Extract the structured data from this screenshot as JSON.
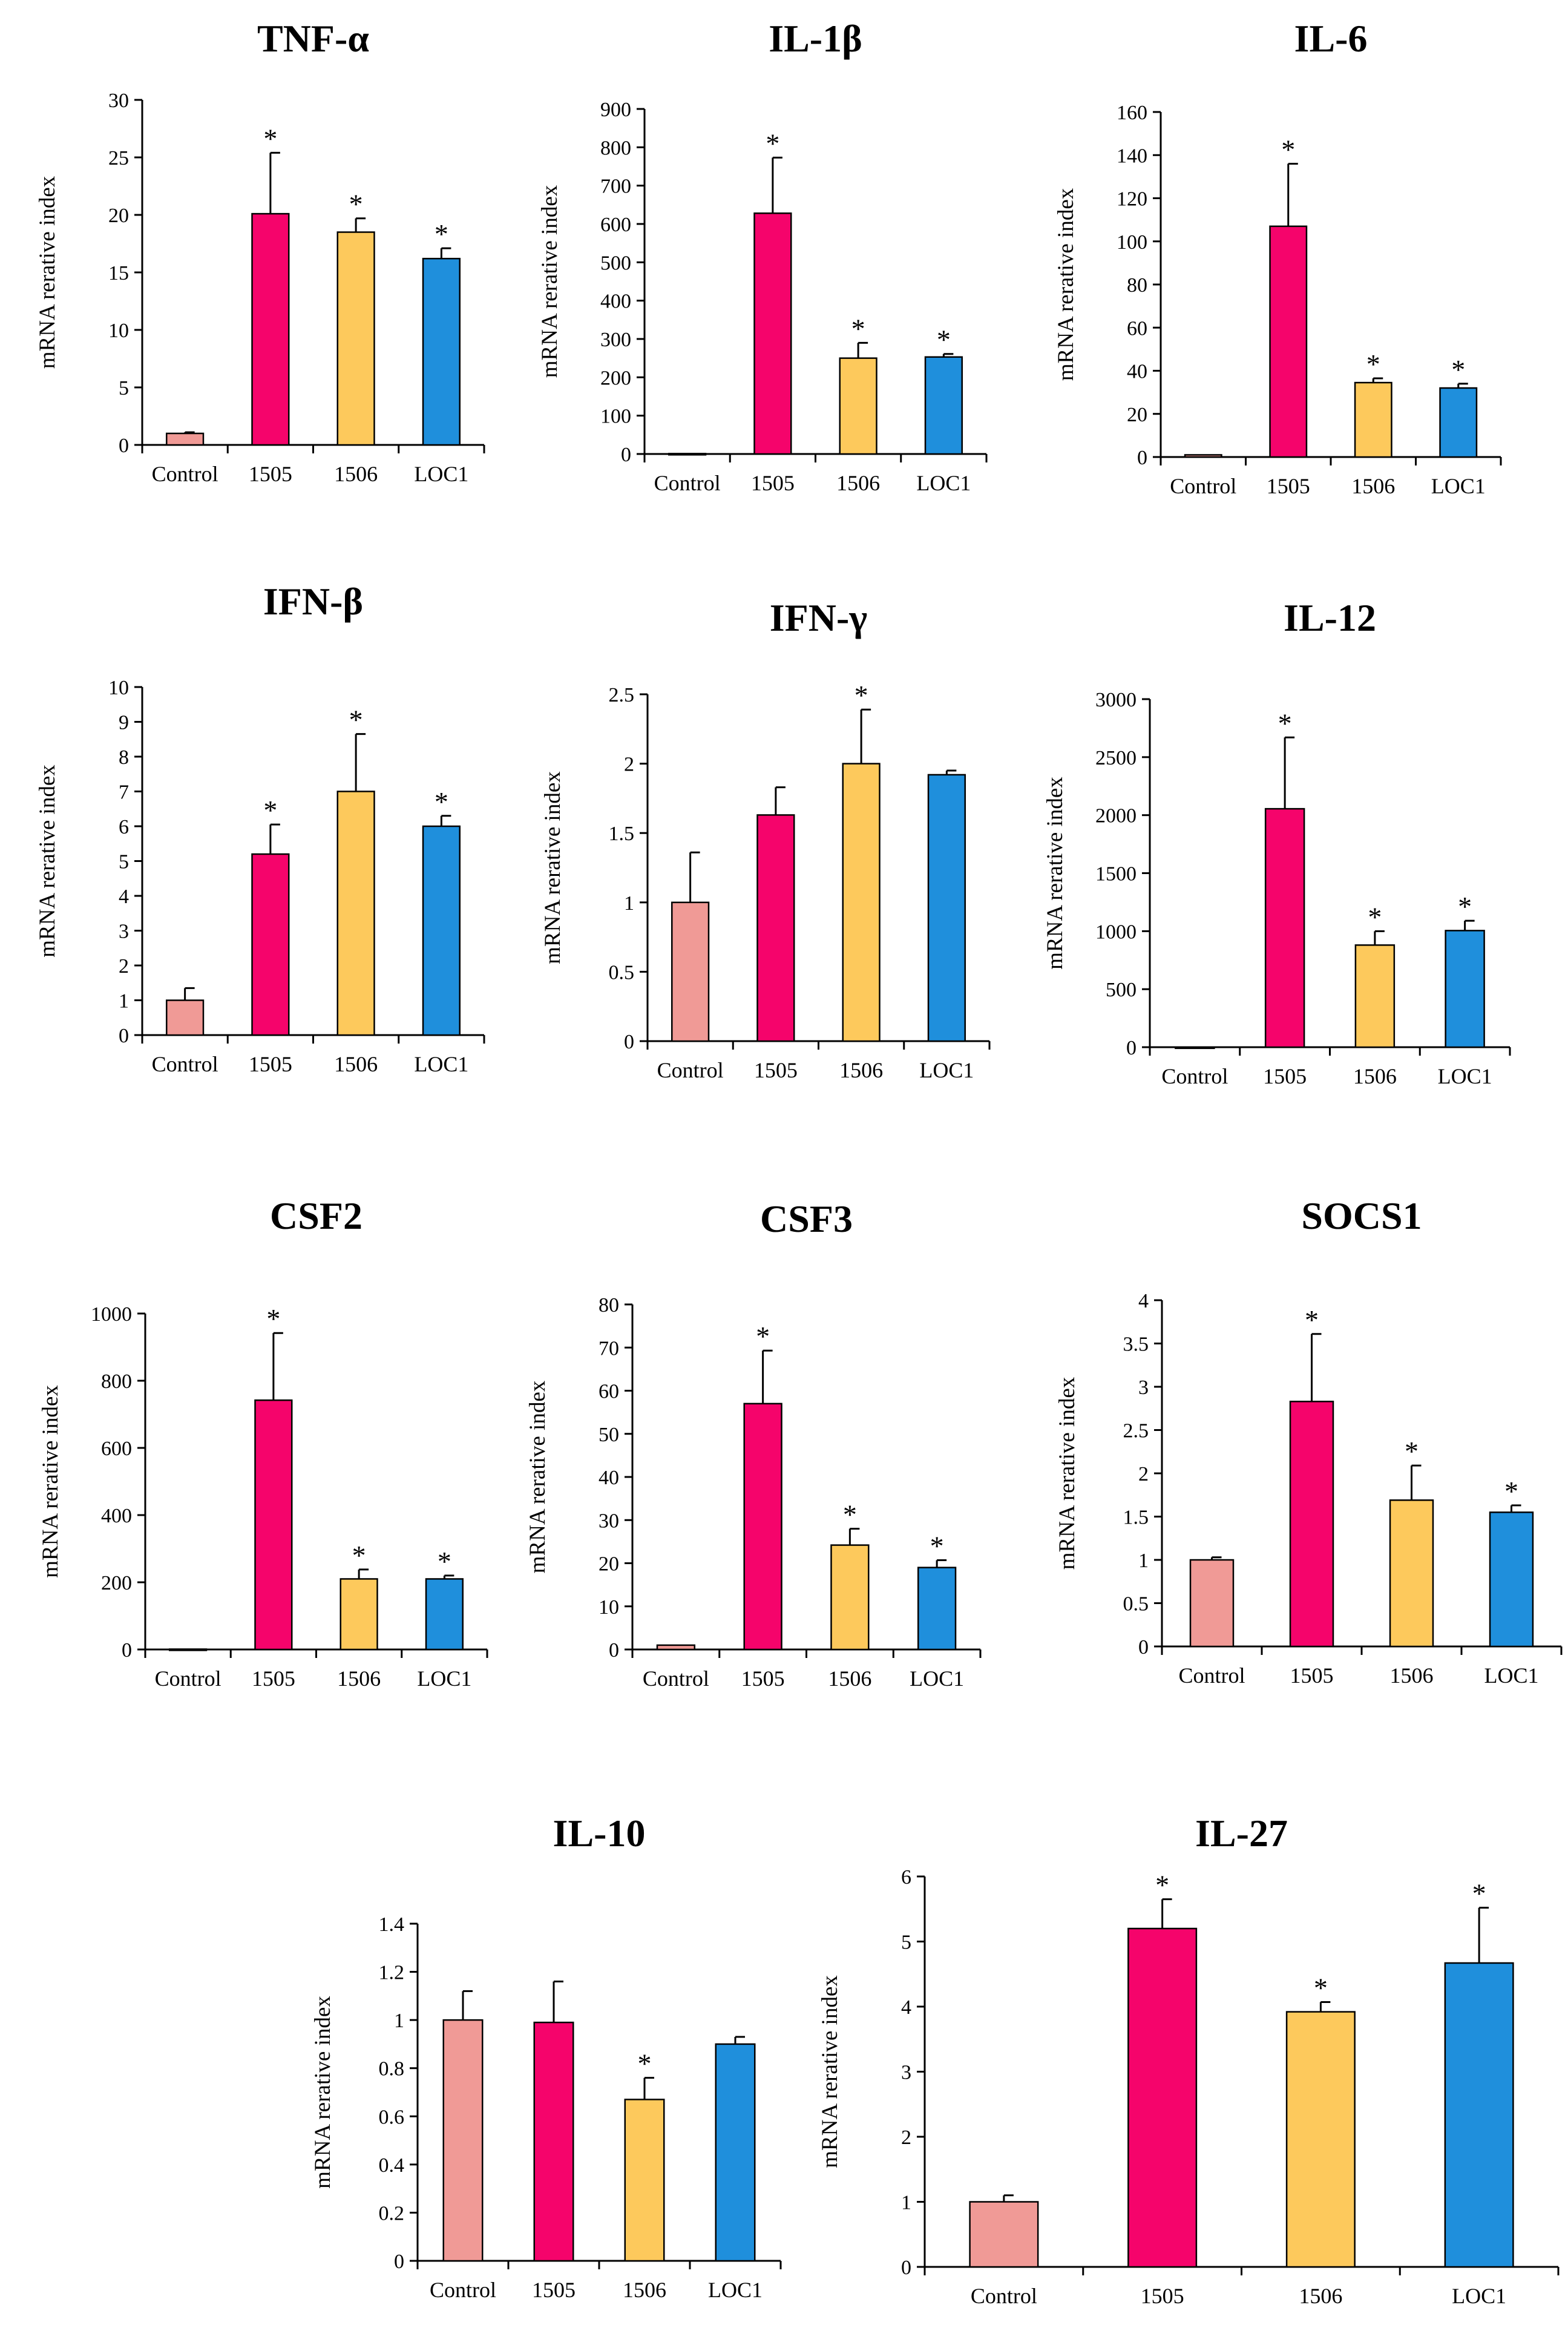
{
  "figure": {
    "y_axis_label": "mRNA rerative index",
    "categories": [
      "Control",
      "1505",
      "1506",
      "LOC1"
    ],
    "bar_colors": [
      "#f09a96",
      "#f5046b",
      "#fdc95c",
      "#1f8fdc"
    ],
    "significance_marker": "*"
  },
  "chart_data": [
    {
      "type": "bar",
      "title": "TNF-α",
      "ylabel": "mRNA rerative index",
      "categories": [
        "Control",
        "1505",
        "1506",
        "LOC1"
      ],
      "values": [
        1.0,
        20.1,
        18.5,
        16.2
      ],
      "errors": [
        0.1,
        5.3,
        1.2,
        0.9
      ],
      "significant": [
        false,
        true,
        true,
        true
      ],
      "ylim": [
        0,
        30
      ],
      "yticks": [
        0,
        5,
        10,
        15,
        20,
        25,
        30
      ],
      "ytick_labels": [
        "0",
        "5",
        "10",
        "15",
        "20",
        "25",
        "30"
      ]
    },
    {
      "type": "bar",
      "title": "IL-1β",
      "ylabel": "mRNA rerative index",
      "categories": [
        "Control",
        "1505",
        "1506",
        "LOC1"
      ],
      "values": [
        1,
        628,
        250,
        253
      ],
      "errors": [
        0,
        145,
        40,
        8
      ],
      "significant": [
        false,
        true,
        true,
        true
      ],
      "ylim": [
        0,
        900
      ],
      "yticks": [
        0,
        100,
        200,
        300,
        400,
        500,
        600,
        700,
        800,
        900
      ],
      "ytick_labels": [
        "0",
        "100",
        "200",
        "300",
        "400",
        "500",
        "600",
        "700",
        "800",
        "900"
      ]
    },
    {
      "type": "bar",
      "title": "IL-6",
      "ylabel": "mRNA rerative index",
      "categories": [
        "Control",
        "1505",
        "1506",
        "LOC1"
      ],
      "values": [
        1,
        107,
        34.5,
        32
      ],
      "errors": [
        0,
        29,
        2,
        2
      ],
      "significant": [
        false,
        true,
        true,
        true
      ],
      "ylim": [
        0,
        160
      ],
      "yticks": [
        0,
        20,
        40,
        60,
        80,
        100,
        120,
        140,
        160
      ],
      "ytick_labels": [
        "0",
        "20",
        "40",
        "60",
        "80",
        "100",
        "120",
        "140",
        "160"
      ]
    },
    {
      "type": "bar",
      "title": "IFN-β",
      "ylabel": "mRNA rerative index",
      "categories": [
        "Control",
        "1505",
        "1506",
        "LOC1"
      ],
      "values": [
        1.0,
        5.2,
        7.0,
        6.0
      ],
      "errors": [
        0.35,
        0.85,
        1.65,
        0.3
      ],
      "significant": [
        false,
        true,
        true,
        true
      ],
      "ylim": [
        0,
        10
      ],
      "yticks": [
        0,
        1,
        2,
        3,
        4,
        5,
        6,
        7,
        8,
        9,
        10
      ],
      "ytick_labels": [
        "0",
        "1",
        "2",
        "3",
        "4",
        "5",
        "6",
        "7",
        "8",
        "9",
        "10"
      ]
    },
    {
      "type": "bar",
      "title": "IFN-γ",
      "ylabel": "mRNA rerative index",
      "categories": [
        "Control",
        "1505",
        "1506",
        "LOC1"
      ],
      "values": [
        1.0,
        1.63,
        2.0,
        1.92
      ],
      "errors": [
        0.36,
        0.2,
        0.39,
        0.03
      ],
      "significant": [
        false,
        false,
        true,
        false
      ],
      "ylim": [
        0,
        2.5
      ],
      "yticks": [
        0,
        0.5,
        1,
        1.5,
        2,
        2.5
      ],
      "ytick_labels": [
        "0",
        "0.5",
        "1",
        "1.5",
        "2",
        "2.5"
      ]
    },
    {
      "type": "bar",
      "title": "IL-12",
      "ylabel": "mRNA rerative index",
      "categories": [
        "Control",
        "1505",
        "1506",
        "LOC1"
      ],
      "values": [
        1,
        2055,
        880,
        1005
      ],
      "errors": [
        0,
        615,
        120,
        85
      ],
      "significant": [
        false,
        true,
        true,
        true
      ],
      "ylim": [
        0,
        3000
      ],
      "yticks": [
        0,
        500,
        1000,
        1500,
        2000,
        2500,
        3000
      ],
      "ytick_labels": [
        "0",
        "500",
        "1000",
        "1500",
        "2000",
        "2500",
        "3000"
      ]
    },
    {
      "type": "bar",
      "title": "CSF2",
      "ylabel": "mRNA rerative index",
      "categories": [
        "Control",
        "1505",
        "1506",
        "LOC1"
      ],
      "values": [
        1,
        742,
        210,
        210
      ],
      "errors": [
        0,
        200,
        28,
        10
      ],
      "significant": [
        false,
        true,
        true,
        true
      ],
      "ylim": [
        0,
        1000
      ],
      "yticks": [
        0,
        200,
        400,
        600,
        800,
        1000
      ],
      "ytick_labels": [
        "0",
        "200",
        "400",
        "600",
        "800",
        "1000"
      ]
    },
    {
      "type": "bar",
      "title": "CSF3",
      "ylabel": "mRNA rerative index",
      "categories": [
        "Control",
        "1505",
        "1506",
        "LOC1"
      ],
      "values": [
        1,
        57,
        24.2,
        19
      ],
      "errors": [
        0,
        12.3,
        3.8,
        1.7
      ],
      "significant": [
        false,
        true,
        true,
        true
      ],
      "ylim": [
        0,
        80
      ],
      "yticks": [
        0,
        10,
        20,
        30,
        40,
        50,
        60,
        70,
        80
      ],
      "ytick_labels": [
        "0",
        "10",
        "20",
        "30",
        "40",
        "50",
        "60",
        "70",
        "80"
      ]
    },
    {
      "type": "bar",
      "title": "SOCS1",
      "ylabel": "mRNA rerative index",
      "categories": [
        "Control",
        "1505",
        "1506",
        "LOC1"
      ],
      "values": [
        1.0,
        2.83,
        1.69,
        1.55
      ],
      "errors": [
        0.03,
        0.78,
        0.4,
        0.08
      ],
      "significant": [
        false,
        true,
        true,
        true
      ],
      "ylim": [
        0,
        4
      ],
      "yticks": [
        0,
        0.5,
        1,
        1.5,
        2,
        2.5,
        3,
        3.5,
        4
      ],
      "ytick_labels": [
        "0",
        "0.5",
        "1",
        "1.5",
        "2",
        "2.5",
        "3",
        "3.5",
        "4"
      ]
    },
    {
      "type": "bar",
      "title": "IL-10",
      "ylabel": "mRNA rerative index",
      "categories": [
        "Control",
        "1505",
        "1506",
        "LOC1"
      ],
      "values": [
        1.0,
        0.99,
        0.67,
        0.9
      ],
      "errors": [
        0.12,
        0.17,
        0.09,
        0.03
      ],
      "significant": [
        false,
        false,
        true,
        false
      ],
      "ylim": [
        0,
        1.4
      ],
      "yticks": [
        0,
        0.2,
        0.4,
        0.6,
        0.8,
        1,
        1.2,
        1.4
      ],
      "ytick_labels": [
        "0",
        "0.2",
        "0.4",
        "0.6",
        "0.8",
        "1",
        "1.2",
        "1.4"
      ]
    },
    {
      "type": "bar",
      "title": "IL-27",
      "ylabel": "mRNA rerative index",
      "categories": [
        "Control",
        "1505",
        "1506",
        "LOC1"
      ],
      "values": [
        1.0,
        5.2,
        3.92,
        4.67
      ],
      "errors": [
        0.1,
        0.45,
        0.15,
        0.85
      ],
      "significant": [
        false,
        true,
        true,
        true
      ],
      "ylim": [
        0,
        6
      ],
      "yticks": [
        0,
        1,
        2,
        3,
        4,
        5,
        6
      ],
      "ytick_labels": [
        "0",
        "1",
        "2",
        "3",
        "4",
        "5",
        "6"
      ]
    }
  ]
}
